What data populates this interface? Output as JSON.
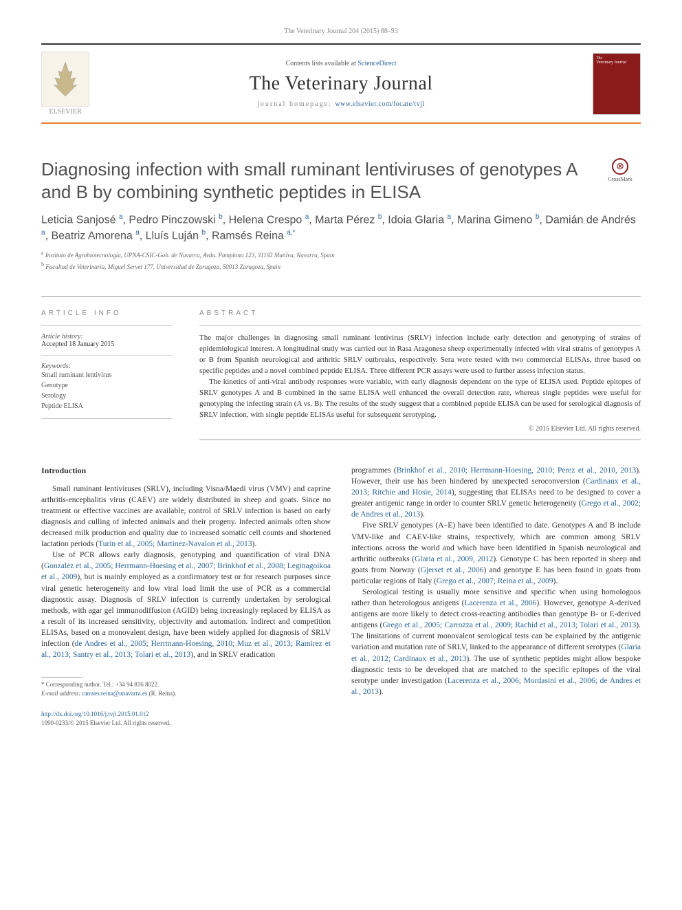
{
  "running_header": "The Veterinary Journal 204 (2015) 88–93",
  "masthead": {
    "publisher_logo_text": "ELSEVIER",
    "contents_prefix": "Contents lists available at ",
    "contents_link": "ScienceDirect",
    "journal_name": "The Veterinary Journal",
    "homepage_prefix": "journal homepage: ",
    "homepage_url": "www.elsevier.com/locate/tvjl",
    "cover_label_1": "The",
    "cover_label_2": "Veterinary",
    "cover_label_3": "Journal"
  },
  "article": {
    "title": "Diagnosing infection with small ruminant lentiviruses of genotypes A and B by combining synthetic peptides in ELISA",
    "crossmark_label": "CrossMark",
    "authors_html": "Leticia Sanjosé <sup>a</sup>, Pedro Pinczowski <sup>b</sup>, Helena Crespo <sup>a</sup>, Marta Pérez <sup>b</sup>, Idoia Glaria <sup>a</sup>, Marina Gimeno <sup>b</sup>, Damián de Andrés <sup>a</sup>, Beatriz Amorena <sup>a</sup>, Lluís Luján <sup>b</sup>, Ramsés Reina <sup>a,*</sup>",
    "affiliations": [
      {
        "sup": "a",
        "text": "Instituto de Agrobiotecnología, UPNA-CSIC-Gob. de Navarra, Avda. Pamplona 123, 31192 Mutilva, Navarra, Spain"
      },
      {
        "sup": "b",
        "text": "Facultad de Veterinaria, Miguel Servet 177, Universidad de Zaragoza, 50013 Zaragoza, Spain"
      }
    ]
  },
  "info": {
    "heading": "ARTICLE INFO",
    "history_label": "Article history:",
    "accepted": "Accepted 18 January 2015",
    "keywords_label": "Keywords:",
    "keywords": [
      "Small ruminant lentivirus",
      "Genotype",
      "Serology",
      "Peptide ELISA"
    ]
  },
  "abstract": {
    "heading": "ABSTRACT",
    "paragraphs": [
      "The major challenges in diagnosing small ruminant lentivirus (SRLV) infection include early detection and genotyping of strains of epidemiological interest. A longitudinal study was carried out in Rasa Aragonesa sheep experimentally infected with viral strains of genotypes A or B from Spanish neurological and arthritic SRLV outbreaks, respectively. Sera were tested with two commercial ELISAs, three based on specific peptides and a novel combined peptide ELISA. Three different PCR assays were used to further assess infection status.",
      "The kinetics of anti-viral antibody responses were variable, with early diagnosis dependent on the type of ELISA used. Peptide epitopes of SRLV genotypes A and B combined in the same ELISA well enhanced the overall detection rate, whereas single peptides were useful for genotyping the infecting strain (A vs. B). The results of the study suggest that a combined peptide ELISA can be used for serological diagnosis of SRLV infection, with single peptide ELISAs useful for subsequent serotyping."
    ],
    "copyright": "© 2015 Elsevier Ltd. All rights reserved."
  },
  "body": {
    "intro_heading": "Introduction",
    "left_paragraphs": [
      "Small ruminant lentiviruses (SRLV), including Visna/Maedi virus (VMV) and caprine arthritis-encephalitis virus (CAEV) are widely distributed in sheep and goats. Since no treatment or effective vaccines are available, control of SRLV infection is based on early diagnosis and culling of infected animals and their progeny. Infected animals often show decreased milk production and quality due to increased somatic cell counts and shortened lactation periods (<span class=\"ref-link\">Turin et al., 2005; Martinez-Navalon et al., 2013</span>).",
      "Use of PCR allows early diagnosis, genotyping and quantification of viral DNA (<span class=\"ref-link\">Gonzalez et al., 2005; Herrmann-Hoesing et al., 2007; Brinkhof et al., 2008; Leginagoikoa et al., 2009</span>), but is mainly employed as a confirmatory test or for research purposes since viral genetic heterogeneity and low viral load limit the use of PCR as a commercial diagnostic assay. Diagnosis of SRLV infection is currently undertaken by serological methods, with agar gel immunodiffusion (AGID) being increasingly replaced by ELISA as a result of its increased sensitivity, objectivity and automation. Indirect and competition ELISAs, based on a monovalent design, have been widely applied for diagnosis of SRLV infection (<span class=\"ref-link\">de Andres et al., 2005; Herrmann-Hoesing, 2010; Muz et al., 2013; Ramirez et al., 2013; Santry et al., 2013; Tolari et al., 2013</span>), and in SRLV eradication"
    ],
    "right_paragraphs": [
      "programmes (<span class=\"ref-link\">Brinkhof et al., 2010; Herrmann-Hoesing, 2010; Perez et al., 2010, 2013</span>). However, their use has been hindered by unexpected seroconversion (<span class=\"ref-link\">Cardinaux et al., 2013; Ritchie and Hosie, 2014</span>), suggesting that ELISAs need to be designed to cover a greater antigenic range in order to counter SRLV genetic heterogeneity (<span class=\"ref-link\">Grego et al., 2002; de Andres et al., 2013</span>).",
      "Five SRLV genotypes (A–E) have been identified to date. Genotypes A and B include VMV-like and CAEV-like strains, respectively, which are common among SRLV infections across the world and which have been identified in Spanish neurological and arthritic outbreaks (<span class=\"ref-link\">Glaria et al., 2009, 2012</span>). Genotype C has been reported in sheep and goats from Norway (<span class=\"ref-link\">Gjerset et al., 2006</span>) and genotype E has been found in goats from particular regions of Italy (<span class=\"ref-link\">Grego et al., 2007; Reina et al., 2009</span>).",
      "Serological testing is usually more sensitive and specific when using homologous rather than heterologous antigens (<span class=\"ref-link\">Lacerenza et al., 2006</span>). However, genotype A-derived antigens are more likely to detect cross-reacting antibodies than genotype B- or E-derived antigens (<span class=\"ref-link\">Grego et al., 2005; Carrozza et al., 2009; Rachid et al., 2013; Tolari et al., 2013</span>). The limitations of current monovalent serological tests can be explained by the antigenic variation and mutation rate of SRLV, linked to the appearance of different serotypes (<span class=\"ref-link\">Glaria et al., 2012; Cardinaux et al., 2013</span>). The use of synthetic peptides might allow bespoke diagnostic tests to be developed that are matched to the specific epitopes of the viral serotype under investigation (<span class=\"ref-link\">Lacerenza et al., 2006; Mordasini et al., 2006; de Andres et al., 2013</span>)."
    ]
  },
  "footnotes": {
    "corr_label": "* Corresponding author. Tel.: +34 94 816 8022.",
    "email_label": "E-mail address: ",
    "email": "ramses.reina@unavarra.es",
    "email_suffix": " (R. Reina)."
  },
  "doi": {
    "url": "http://dx.doi.org/10.1016/j.tvjl.2015.01.012",
    "issn_line": "1090-0233/© 2015 Elsevier Ltd. All rights reserved."
  },
  "colors": {
    "accent_orange": "#ed7d31",
    "link_blue": "#2a6496",
    "cover_red": "#8b1a1a"
  }
}
